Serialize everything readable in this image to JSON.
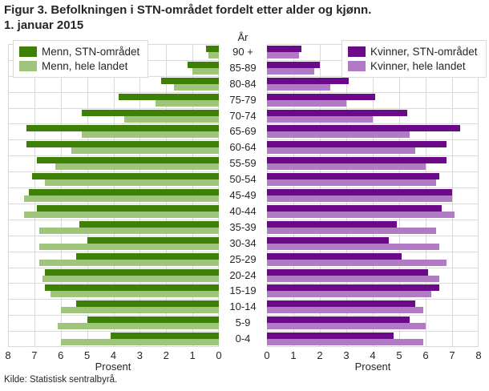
{
  "title": {
    "line1": "Figur 3. Befolkningen i STN-området fordelt etter alder og kjønn.",
    "line2": "1. januar 2015"
  },
  "source": "Kilde: Statistisk sentralbyrå.",
  "colors": {
    "menn_stn": "#3e7f08",
    "menn_land": "#9ec57b",
    "kvinner_stn": "#6a0a88",
    "kvinner_land": "#b07ac4",
    "grid": "#d9d9d9"
  },
  "chart_data": {
    "type": "bar",
    "subtype": "population-pyramid",
    "age_axis_label": "År",
    "x_axis_label": "Prosent",
    "xlim": [
      0,
      8
    ],
    "x_ticks": [
      0,
      1,
      2,
      3,
      4,
      5,
      6,
      7,
      8
    ],
    "grid": true,
    "categories": [
      "90 +",
      "85-89",
      "80-84",
      "75-79",
      "70-74",
      "65-69",
      "60-64",
      "55-59",
      "50-54",
      "45-49",
      "40-44",
      "35-39",
      "30-34",
      "25-29",
      "20-24",
      "15-19",
      "10-14",
      "5-9",
      "0-4"
    ],
    "left": {
      "side_label": "Menn",
      "direction": "right-to-left",
      "series": [
        {
          "name": "Menn, STN-området",
          "color_key": "menn_stn",
          "values": [
            0.5,
            1.2,
            2.2,
            3.8,
            5.2,
            7.3,
            7.3,
            6.9,
            7.1,
            7.2,
            6.9,
            5.3,
            5.0,
            5.4,
            6.6,
            6.6,
            5.4,
            5.0,
            4.1
          ]
        },
        {
          "name": "Menn, hele landet",
          "color_key": "menn_land",
          "values": [
            0.4,
            1.0,
            1.7,
            2.4,
            3.6,
            5.2,
            5.6,
            6.2,
            6.6,
            7.4,
            7.4,
            6.8,
            6.8,
            6.8,
            6.7,
            6.4,
            6.0,
            6.1,
            6.0
          ]
        }
      ]
    },
    "right": {
      "side_label": "Kvinner",
      "direction": "left-to-right",
      "series": [
        {
          "name": "Kvinner, STN-området",
          "color_key": "kvinner_stn",
          "values": [
            1.3,
            2.0,
            3.1,
            4.1,
            5.3,
            7.3,
            6.8,
            6.8,
            6.5,
            7.0,
            6.6,
            4.9,
            4.6,
            5.1,
            6.1,
            6.5,
            5.6,
            5.4,
            4.8
          ]
        },
        {
          "name": "Kvinner, hele landet",
          "color_key": "kvinner_land",
          "values": [
            1.2,
            1.8,
            2.4,
            3.0,
            4.0,
            5.4,
            5.6,
            6.0,
            6.4,
            7.0,
            7.1,
            6.4,
            6.5,
            6.8,
            6.5,
            6.2,
            5.9,
            6.0,
            5.9
          ]
        }
      ]
    }
  }
}
